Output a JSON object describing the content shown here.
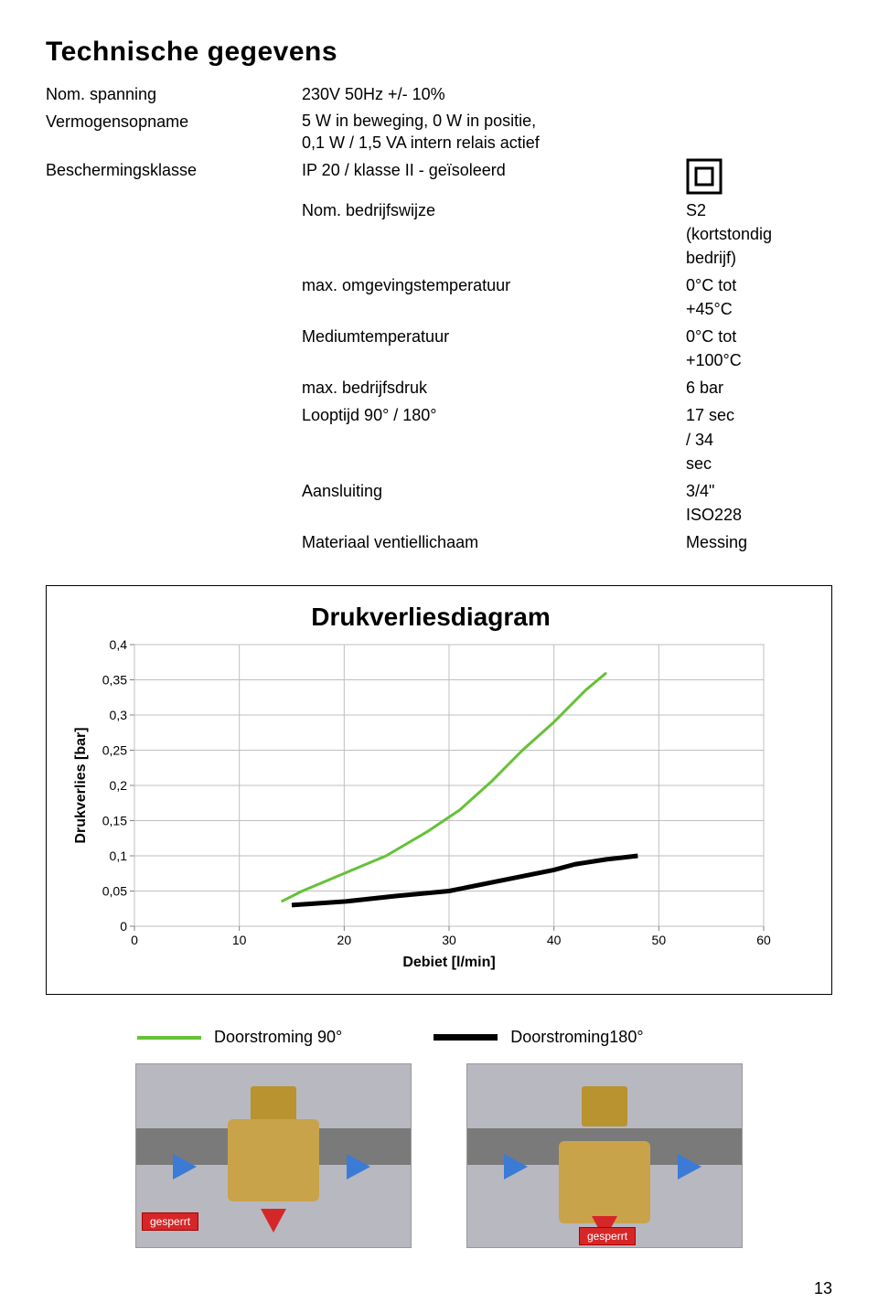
{
  "title": "Technische gegevens",
  "specs": [
    {
      "label": "Nom. spanning",
      "value": "230V 50Hz  +/- 10%"
    },
    {
      "label": "Vermogensopname",
      "value": "5 W in beweging, 0 W in positie,\n0,1 W / 1,5 VA intern relais actief"
    },
    {
      "label": "Beschermingsklasse",
      "value": "IP 20 / klasse II - geïsoleerd"
    },
    {
      "label": "Nom. bedrijfswijze",
      "value": "S2 (kortstondig bedrijf)"
    },
    {
      "label": "max. omgevingstemperatuur",
      "value": "0°C tot +45°C"
    },
    {
      "label": "Mediumtemperatuur",
      "value": "0°C tot +100°C"
    },
    {
      "label": "max. bedrijfsdruk",
      "value": "6 bar"
    },
    {
      "label": "Looptijd 90° / 180°",
      "value": "17 sec / 34 sec"
    },
    {
      "label": "Aansluiting",
      "value": "3/4\" ISO228"
    },
    {
      "label": "Materiaal ventiellichaam",
      "value": "Messing"
    }
  ],
  "chart": {
    "title": "Drukverliesdiagram",
    "type": "line",
    "ylabel": "Drukverlies [bar]",
    "xlabel": "Debiet [l/min]",
    "xlim": [
      0,
      60
    ],
    "xtick_step": 10,
    "ylim": [
      0,
      0.4
    ],
    "ytick_step": 0.05,
    "ytick_labels": [
      "0",
      "0,05",
      "0,1",
      "0,15",
      "0,2",
      "0,25",
      "0,3",
      "0,35",
      "0,4"
    ],
    "background_color": "#ffffff",
    "grid_color": "#bfbfbf",
    "axis_color": "#808080",
    "tick_fontsize": 14,
    "label_fontsize": 16,
    "label_fontweight": "bold",
    "title_fontsize": 28,
    "series": [
      {
        "name": "green",
        "color": "#66c137",
        "width": 3,
        "x": [
          14,
          16,
          20,
          24,
          28,
          31,
          34,
          37,
          40,
          43,
          45
        ],
        "y": [
          0.035,
          0.05,
          0.075,
          0.1,
          0.135,
          0.165,
          0.205,
          0.25,
          0.29,
          0.335,
          0.36
        ]
      },
      {
        "name": "black",
        "color": "#000000",
        "width": 5,
        "x": [
          15,
          20,
          25,
          30,
          35,
          40,
          42,
          45,
          48
        ],
        "y": [
          0.03,
          0.035,
          0.043,
          0.05,
          0.065,
          0.08,
          0.088,
          0.095,
          0.1
        ]
      }
    ]
  },
  "legend": [
    {
      "label": "Doorstroming 90°",
      "color": "#66c137",
      "width": 4
    },
    {
      "label": "Doorstroming180°",
      "color": "#000000",
      "width": 7
    }
  ],
  "photo_tag": "gesperrt",
  "page_number": "13"
}
